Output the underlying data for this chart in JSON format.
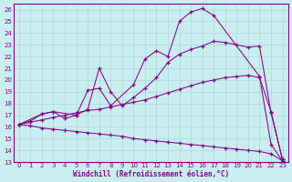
{
  "xlabel": "Windchill (Refroidissement éolien,°C)",
  "background_color": "#c8eef0",
  "grid_color": "#b0d8d8",
  "line_color": "#880088",
  "xlim": [
    -0.5,
    23.5
  ],
  "ylim": [
    13,
    26.5
  ],
  "yticks": [
    13,
    14,
    15,
    16,
    17,
    18,
    19,
    20,
    21,
    22,
    23,
    24,
    25,
    26
  ],
  "xticks": [
    0,
    1,
    2,
    3,
    4,
    5,
    6,
    7,
    8,
    9,
    10,
    11,
    12,
    13,
    14,
    15,
    16,
    17,
    18,
    19,
    20,
    21,
    22,
    23
  ],
  "line1_x": [
    0,
    1,
    2,
    3,
    4,
    5,
    6,
    7,
    8,
    9,
    10,
    11,
    12,
    13,
    14,
    15,
    16,
    17,
    18,
    19,
    20,
    21,
    22,
    23
  ],
  "line1_y": [
    16.2,
    16.1,
    15.9,
    15.8,
    15.7,
    15.6,
    15.5,
    15.4,
    15.3,
    15.2,
    15.0,
    14.9,
    14.8,
    14.7,
    14.6,
    14.5,
    14.4,
    14.3,
    14.2,
    14.1,
    14.0,
    13.9,
    13.7,
    13.1
  ],
  "line2_x": [
    0,
    1,
    2,
    3,
    4,
    5,
    6,
    7,
    8,
    9,
    10,
    11,
    12,
    13,
    14,
    15,
    16,
    17,
    18,
    19,
    20,
    21,
    22,
    23
  ],
  "line2_y": [
    16.2,
    16.4,
    16.6,
    16.8,
    17.0,
    17.2,
    17.4,
    17.5,
    17.7,
    17.9,
    18.1,
    18.3,
    18.6,
    18.9,
    19.2,
    19.5,
    19.8,
    20.0,
    20.2,
    20.3,
    20.4,
    20.2,
    17.3,
    13.2
  ],
  "line3_x": [
    0,
    1,
    2,
    3,
    4,
    5,
    6,
    7,
    8,
    9,
    10,
    11,
    12,
    13,
    14,
    15,
    16,
    17,
    18,
    19,
    20,
    21,
    22,
    23
  ],
  "line3_y": [
    16.2,
    16.5,
    17.1,
    17.3,
    16.7,
    17.0,
    17.5,
    21.0,
    19.0,
    17.8,
    18.5,
    19.3,
    20.2,
    21.5,
    22.2,
    22.6,
    22.9,
    23.3,
    23.2,
    23.0,
    22.8,
    22.9,
    17.2,
    13.2
  ],
  "line4_x": [
    0,
    2,
    3,
    5,
    6,
    7,
    8,
    10,
    11,
    12,
    13,
    14,
    15,
    16,
    17,
    21,
    22,
    23
  ],
  "line4_y": [
    16.2,
    17.1,
    17.3,
    17.0,
    19.1,
    19.3,
    17.8,
    19.6,
    21.8,
    22.5,
    22.0,
    25.0,
    25.8,
    26.1,
    25.5,
    20.3,
    14.5,
    13.1
  ]
}
